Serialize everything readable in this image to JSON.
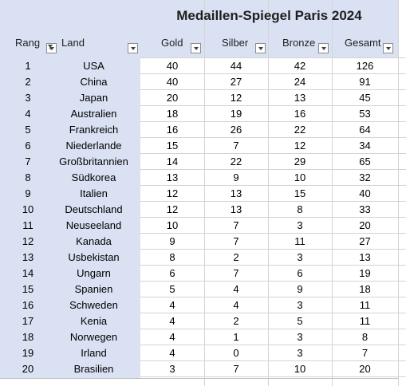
{
  "title": "Medaillen-Spiegel Paris 2024",
  "headers": {
    "rang": "Rang",
    "land": "Land",
    "gold": "Gold",
    "silber": "Silber",
    "bronze": "Bronze",
    "gesamt": "Gesamt"
  },
  "filter_icon": "dropdown-arrow",
  "active_filter_icon": "filter-funnel",
  "rows": [
    {
      "rang": "1",
      "land": "USA",
      "gold": "40",
      "silber": "44",
      "bronze": "42",
      "gesamt": "126"
    },
    {
      "rang": "2",
      "land": "China",
      "gold": "40",
      "silber": "27",
      "bronze": "24",
      "gesamt": "91"
    },
    {
      "rang": "3",
      "land": "Japan",
      "gold": "20",
      "silber": "12",
      "bronze": "13",
      "gesamt": "45"
    },
    {
      "rang": "4",
      "land": "Australien",
      "gold": "18",
      "silber": "19",
      "bronze": "16",
      "gesamt": "53"
    },
    {
      "rang": "5",
      "land": "Frankreich",
      "gold": "16",
      "silber": "26",
      "bronze": "22",
      "gesamt": "64"
    },
    {
      "rang": "6",
      "land": "Niederlande",
      "gold": "15",
      "silber": "7",
      "bronze": "12",
      "gesamt": "34"
    },
    {
      "rang": "7",
      "land": "Großbritannien",
      "gold": "14",
      "silber": "22",
      "bronze": "29",
      "gesamt": "65"
    },
    {
      "rang": "8",
      "land": "Südkorea",
      "gold": "13",
      "silber": "9",
      "bronze": "10",
      "gesamt": "32"
    },
    {
      "rang": "9",
      "land": "Italien",
      "gold": "12",
      "silber": "13",
      "bronze": "15",
      "gesamt": "40"
    },
    {
      "rang": "10",
      "land": "Deutschland",
      "gold": "12",
      "silber": "13",
      "bronze": "8",
      "gesamt": "33"
    },
    {
      "rang": "11",
      "land": "Neuseeland",
      "gold": "10",
      "silber": "7",
      "bronze": "3",
      "gesamt": "20"
    },
    {
      "rang": "12",
      "land": "Kanada",
      "gold": "9",
      "silber": "7",
      "bronze": "11",
      "gesamt": "27"
    },
    {
      "rang": "13",
      "land": "Usbekistan",
      "gold": "8",
      "silber": "2",
      "bronze": "3",
      "gesamt": "13"
    },
    {
      "rang": "14",
      "land": "Ungarn",
      "gold": "6",
      "silber": "7",
      "bronze": "6",
      "gesamt": "19"
    },
    {
      "rang": "15",
      "land": "Spanien",
      "gold": "5",
      "silber": "4",
      "bronze": "9",
      "gesamt": "18"
    },
    {
      "rang": "16",
      "land": "Schweden",
      "gold": "4",
      "silber": "4",
      "bronze": "3",
      "gesamt": "11"
    },
    {
      "rang": "17",
      "land": "Kenia",
      "gold": "4",
      "silber": "2",
      "bronze": "5",
      "gesamt": "11"
    },
    {
      "rang": "18",
      "land": "Norwegen",
      "gold": "4",
      "silber": "1",
      "bronze": "3",
      "gesamt": "8"
    },
    {
      "rang": "19",
      "land": "Irland",
      "gold": "4",
      "silber": "0",
      "bronze": "3",
      "gesamt": "7"
    },
    {
      "rang": "20",
      "land": "Brasilien",
      "gold": "3",
      "silber": "7",
      "bronze": "10",
      "gesamt": "20"
    }
  ]
}
